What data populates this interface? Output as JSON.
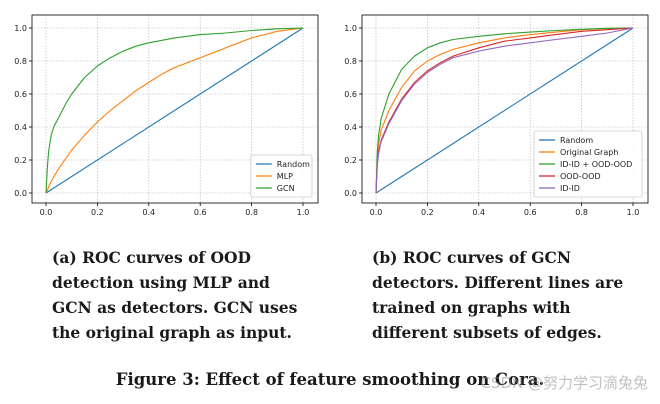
{
  "chart_data": [
    {
      "type": "line",
      "title": "",
      "xlabel": "",
      "ylabel": "",
      "xlim": [
        0.0,
        1.0
      ],
      "ylim": [
        0.0,
        1.0
      ],
      "x_ticks": [
        "0.0",
        "0.2",
        "0.4",
        "0.6",
        "0.8",
        "1.0"
      ],
      "y_ticks": [
        "0.0",
        "0.2",
        "0.4",
        "0.6",
        "0.8",
        "1.0"
      ],
      "grid": true,
      "legend_position": "lower-right",
      "series": [
        {
          "name": "Random",
          "color": "#1f77b4",
          "x": [
            0,
            1
          ],
          "y": [
            0,
            1
          ]
        },
        {
          "name": "MLP",
          "color": "#ff7f0e",
          "x": [
            0,
            0.02,
            0.05,
            0.1,
            0.15,
            0.2,
            0.25,
            0.3,
            0.35,
            0.4,
            0.45,
            0.5,
            0.55,
            0.6,
            0.65,
            0.7,
            0.75,
            0.8,
            0.85,
            0.9,
            0.95,
            1.0
          ],
          "y": [
            0,
            0.07,
            0.15,
            0.26,
            0.35,
            0.43,
            0.5,
            0.56,
            0.62,
            0.67,
            0.72,
            0.76,
            0.79,
            0.82,
            0.85,
            0.88,
            0.91,
            0.94,
            0.96,
            0.98,
            0.99,
            1.0
          ]
        },
        {
          "name": "GCN",
          "color": "#2ca02c",
          "x": [
            0,
            0.005,
            0.01,
            0.02,
            0.03,
            0.05,
            0.08,
            0.1,
            0.15,
            0.2,
            0.25,
            0.3,
            0.35,
            0.4,
            0.5,
            0.6,
            0.7,
            0.8,
            0.9,
            1.0
          ],
          "y": [
            0,
            0.15,
            0.25,
            0.35,
            0.4,
            0.46,
            0.55,
            0.6,
            0.7,
            0.77,
            0.82,
            0.86,
            0.89,
            0.91,
            0.94,
            0.96,
            0.97,
            0.985,
            0.995,
            1.0
          ]
        }
      ]
    },
    {
      "type": "line",
      "title": "",
      "xlabel": "",
      "ylabel": "",
      "xlim": [
        0.0,
        1.0
      ],
      "ylim": [
        0.0,
        1.0
      ],
      "x_ticks": [
        "0.0",
        "0.2",
        "0.4",
        "0.6",
        "0.8",
        "1.0"
      ],
      "y_ticks": [
        "0.0",
        "0.2",
        "0.4",
        "0.6",
        "0.8",
        "1.0"
      ],
      "grid": true,
      "legend_position": "lower-right",
      "series": [
        {
          "name": "Random",
          "color": "#1f77b4",
          "x": [
            0,
            1
          ],
          "y": [
            0,
            1
          ]
        },
        {
          "name": "Original Graph",
          "color": "#ff7f0e",
          "x": [
            0,
            0.005,
            0.01,
            0.02,
            0.05,
            0.1,
            0.15,
            0.2,
            0.25,
            0.3,
            0.4,
            0.5,
            0.6,
            0.7,
            0.8,
            0.9,
            1.0
          ],
          "y": [
            0,
            0.2,
            0.3,
            0.38,
            0.5,
            0.64,
            0.74,
            0.8,
            0.84,
            0.87,
            0.91,
            0.94,
            0.96,
            0.975,
            0.99,
            0.997,
            1.0
          ]
        },
        {
          "name": "ID-ID + OOD-OOD",
          "color": "#2ca02c",
          "x": [
            0,
            0.005,
            0.01,
            0.02,
            0.05,
            0.1,
            0.15,
            0.2,
            0.25,
            0.3,
            0.4,
            0.5,
            0.6,
            0.7,
            0.8,
            0.9,
            1.0
          ],
          "y": [
            0,
            0.25,
            0.35,
            0.45,
            0.6,
            0.75,
            0.83,
            0.88,
            0.91,
            0.93,
            0.95,
            0.965,
            0.975,
            0.985,
            0.992,
            0.998,
            1.0
          ]
        },
        {
          "name": "OOD-OOD",
          "color": "#d62728",
          "x": [
            0,
            0.005,
            0.01,
            0.02,
            0.05,
            0.1,
            0.15,
            0.2,
            0.25,
            0.3,
            0.4,
            0.5,
            0.6,
            0.7,
            0.8,
            0.9,
            1.0
          ],
          "y": [
            0,
            0.18,
            0.25,
            0.32,
            0.43,
            0.57,
            0.67,
            0.74,
            0.79,
            0.83,
            0.88,
            0.92,
            0.94,
            0.96,
            0.98,
            0.99,
            1.0
          ]
        },
        {
          "name": "ID-ID",
          "color": "#9467bd",
          "x": [
            0,
            0.005,
            0.01,
            0.02,
            0.05,
            0.1,
            0.15,
            0.2,
            0.25,
            0.3,
            0.4,
            0.5,
            0.6,
            0.7,
            0.8,
            0.9,
            1.0
          ],
          "y": [
            0,
            0.17,
            0.24,
            0.31,
            0.42,
            0.56,
            0.66,
            0.73,
            0.78,
            0.82,
            0.86,
            0.89,
            0.91,
            0.93,
            0.95,
            0.97,
            1.0
          ]
        }
      ]
    }
  ],
  "captions": {
    "a": "(a) ROC curves of OOD detection using MLP and GCN as detectors. GCN uses the original graph as input.",
    "b": "(b) ROC curves of GCN detectors. Different lines are trained on graphs with different subsets of edges."
  },
  "figure_caption": "Figure 3: Effect of feature smoothing on Cora.",
  "watermark": "CSDN @努力学习滴兔兔"
}
